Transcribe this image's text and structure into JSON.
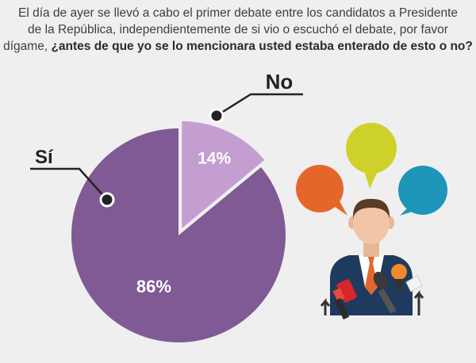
{
  "question": {
    "line1": "El día de ayer se llevó a cabo el primer debate entre los candidatos a Presidente",
    "line2": "de la República, independientemente de si vio o escuchó el debate, por favor",
    "line3_regular": "dígame,",
    "line3_bold": "¿antes de que yo se lo mencionara usted estaba enterado de esto o no?"
  },
  "chart_data": {
    "type": "pie",
    "categories": [
      "Sí",
      "No"
    ],
    "values": [
      86,
      14
    ],
    "value_labels": [
      "86%",
      "14%"
    ],
    "colors": [
      "#7f5a95",
      "#c49ed0"
    ],
    "exploded": "No"
  },
  "illustration": {
    "icons": [
      "speech-bubble-orange-icon",
      "speech-bubble-yellow-icon",
      "speech-bubble-blue-icon",
      "speaker-person-icon",
      "microphones-icon"
    ],
    "bubble_colors": [
      "#e5662a",
      "#cfd12b",
      "#1d96b9"
    ]
  }
}
